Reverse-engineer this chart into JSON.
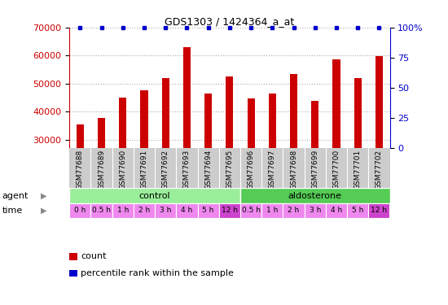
{
  "title": "GDS1303 / 1424364_a_at",
  "samples": [
    "GSM77688",
    "GSM77689",
    "GSM77690",
    "GSM77691",
    "GSM77692",
    "GSM77693",
    "GSM77694",
    "GSM77695",
    "GSM77696",
    "GSM77697",
    "GSM77698",
    "GSM77699",
    "GSM77700",
    "GSM77701",
    "GSM77702"
  ],
  "counts": [
    35500,
    37800,
    45000,
    47500,
    52000,
    63000,
    46500,
    52500,
    44800,
    46500,
    53500,
    43800,
    58500,
    52000,
    59800
  ],
  "ylim_left": [
    27000,
    70000
  ],
  "ylim_right": [
    0,
    100
  ],
  "yticks_left": [
    30000,
    40000,
    50000,
    60000,
    70000
  ],
  "yticks_right": [
    0,
    25,
    50,
    75,
    100
  ],
  "time_labels": [
    "0 h",
    "0.5 h",
    "1 h",
    "2 h",
    "3 h",
    "4 h",
    "5 h",
    "12 h",
    "0.5 h",
    "1 h",
    "2 h",
    "3 h",
    "4 h",
    "5 h",
    "12 h"
  ],
  "agent_control_count": 8,
  "agent_aldo_count": 7,
  "bar_color": "#cc0000",
  "dot_color": "#0000cc",
  "control_color": "#99ee99",
  "aldosterone_color": "#55cc55",
  "time_color_light": "#ee88ee",
  "time_color_dark": "#cc44cc",
  "sample_bg_color": "#cccccc",
  "left_axis_color": "#cc0000",
  "right_axis_color": "#0000cc",
  "legend_count_label": "count",
  "legend_pct_label": "percentile rank within the sample"
}
